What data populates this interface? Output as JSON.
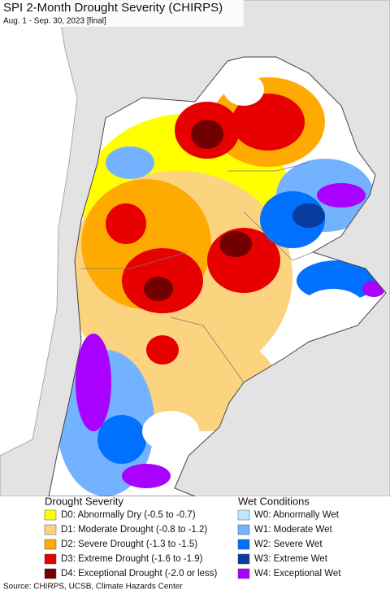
{
  "title": "SPI 2-Month Drought Severity (CHIRPS)",
  "subtitle": "Aug. 1 - Sep. 30, 2023 [final]",
  "legend": {
    "drought": {
      "title": "Drought Severity",
      "items": [
        {
          "label": "D0: Abnormally Dry (-0.5 to -0.7)",
          "color": "#ffff00"
        },
        {
          "label": "D1: Moderate Drought (-0.8 to -1.2)",
          "color": "#fcd37f"
        },
        {
          "label": "D2: Severe Drought (-1.3 to -1.5)",
          "color": "#ffaa00"
        },
        {
          "label": "D3: Extreme Drought (-1.6 to -1.9)",
          "color": "#e60000"
        },
        {
          "label": "D4: Exceptional Drought (-2.0 or less)",
          "color": "#730000"
        }
      ]
    },
    "wet": {
      "title": "Wet Conditions",
      "items": [
        {
          "label": "W0: Abnormally Wet",
          "color": "#bee8ff"
        },
        {
          "label": "W1: Moderate Wet",
          "color": "#73b2ff"
        },
        {
          "label": "W2: Severe Wet",
          "color": "#0070ff"
        },
        {
          "label": "W3: Extreme Wet",
          "color": "#0a3c9f"
        },
        {
          "label": "W4: Exceptional Wet",
          "color": "#aa00ff"
        }
      ]
    }
  },
  "source": "Source: CHIRPS, UCSB, Climate Hazards Center"
}
